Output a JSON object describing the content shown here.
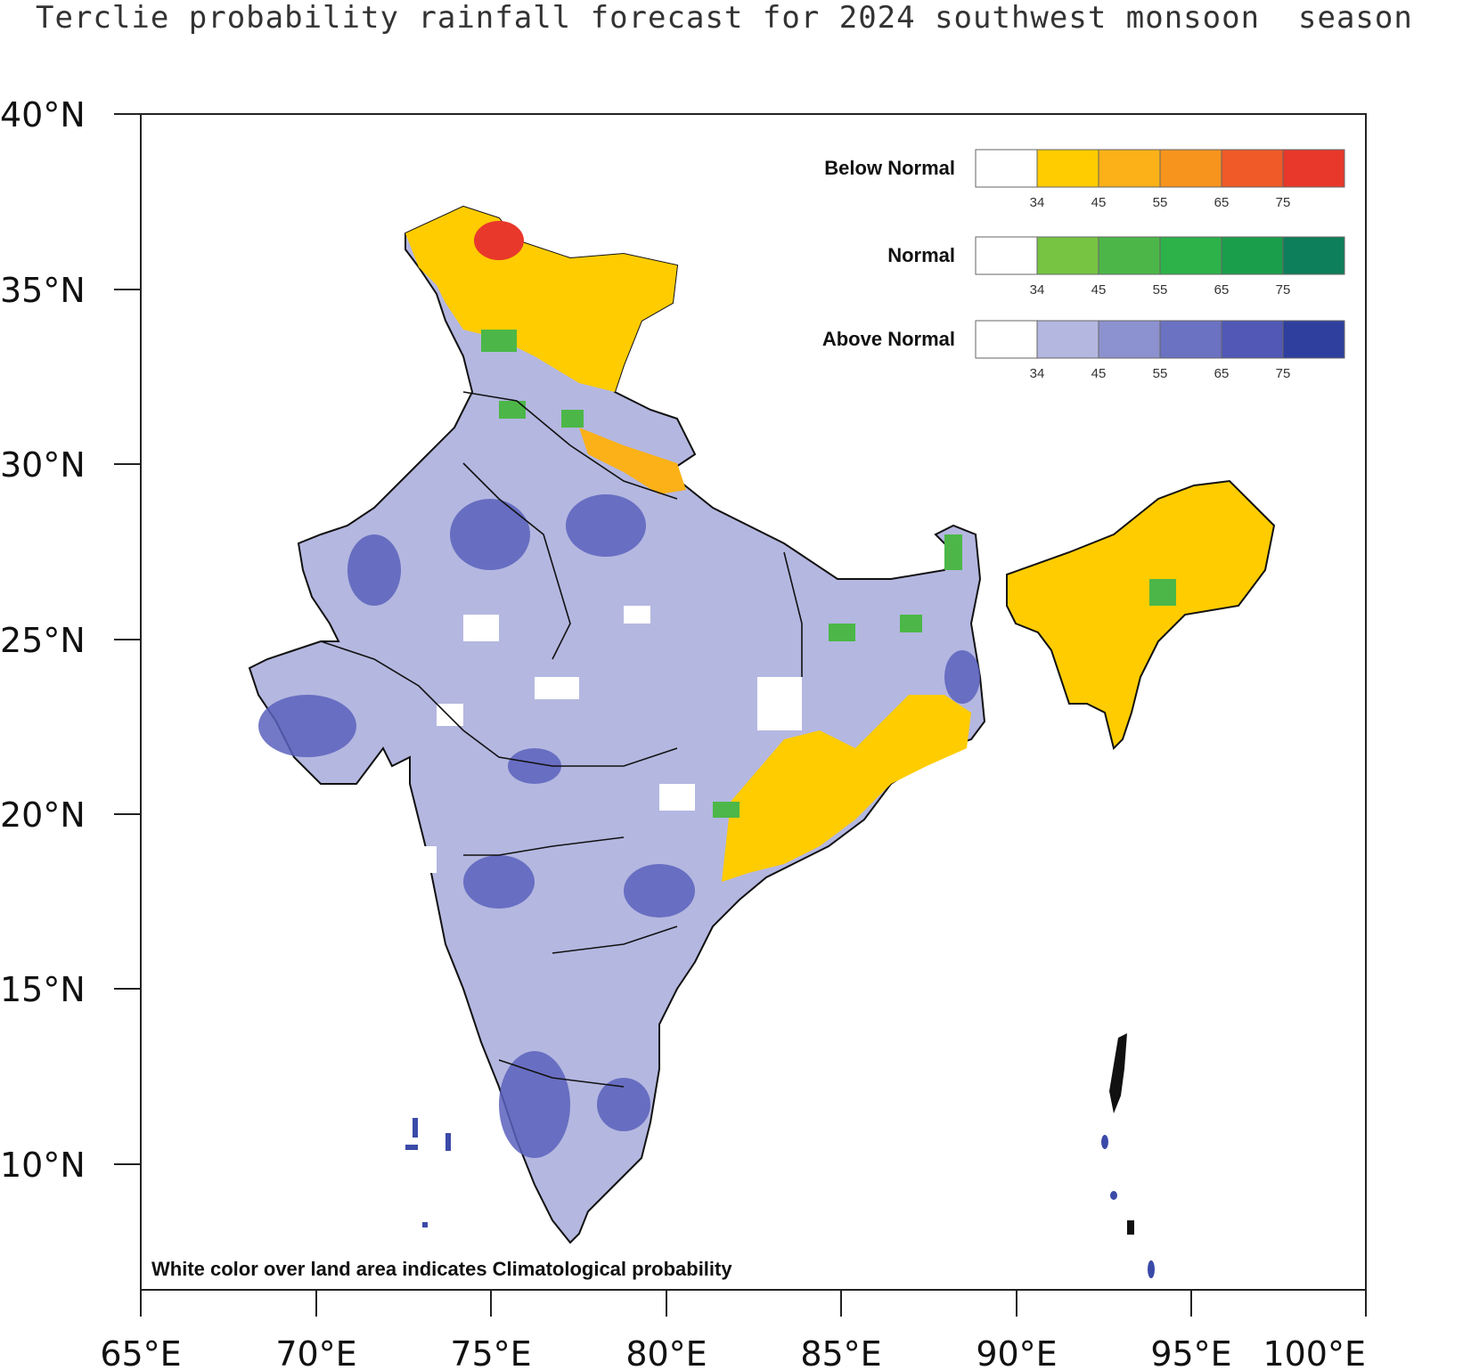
{
  "title": "Terclie probability rainfall forecast for 2024 southwest monsoon  season",
  "axes": {
    "lat_labels": [
      "40°N",
      "35°N",
      "30°N",
      "25°N",
      "20°N",
      "15°N",
      "10°N"
    ],
    "lon_labels": [
      "65°E",
      "70°E",
      "75°E",
      "80°E",
      "85°E",
      "90°E",
      "95°E",
      "100°E"
    ]
  },
  "legend": {
    "ticks": [
      "34",
      "45",
      "55",
      "65",
      "75"
    ],
    "rows": [
      {
        "label": "Below Normal",
        "colors": [
          "#ffffff",
          "#ffcc00",
          "#fbb117",
          "#f7941d",
          "#ef5a28",
          "#e8382b"
        ]
      },
      {
        "label": "Normal",
        "colors": [
          "#ffffff",
          "#76c442",
          "#4cb748",
          "#2db24a",
          "#1b9e4b",
          "#0d7f5a"
        ]
      },
      {
        "label": "Above Normal",
        "colors": [
          "#ffffff",
          "#b4b7e0",
          "#8c91cf",
          "#6b72c2",
          "#5158b6",
          "#2e3f9e"
        ]
      }
    ]
  },
  "note": "White color over land area indicates Climatological probability",
  "colors": {
    "above_light": "#b4b7e0",
    "above_dark": "#4a54b4",
    "below": "#ffcc00",
    "below_red": "#e8382b",
    "normal": "#4cb748",
    "border": "#111111"
  }
}
